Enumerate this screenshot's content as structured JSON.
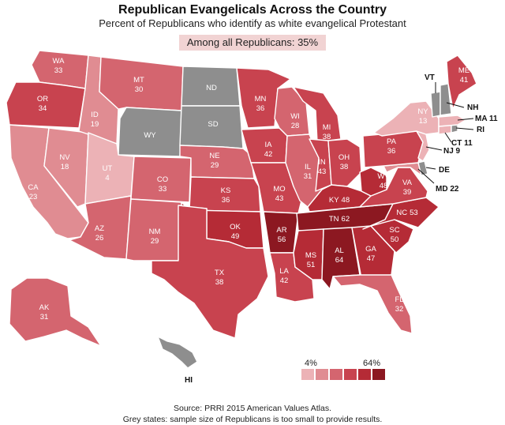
{
  "title": "Republican Evangelicals Across the Country",
  "subtitle": "Percent of Republicans who identify as white evangelical Protestant",
  "summary": "Among all Republicans: 35%",
  "legend": {
    "min": "4%",
    "max": "64%",
    "colors": [
      "#ecb2b6",
      "#e08c92",
      "#d4656f",
      "#c8434f",
      "#b52b36",
      "#8c1821"
    ]
  },
  "no_data_color": "#8e8e8e",
  "states": {
    "WA": {
      "label": "WA",
      "value": "33"
    },
    "OR": {
      "label": "OR",
      "value": "34"
    },
    "CA": {
      "label": "CA",
      "value": "23"
    },
    "NV": {
      "label": "NV",
      "value": "18"
    },
    "ID": {
      "label": "ID",
      "value": "19"
    },
    "MT": {
      "label": "MT",
      "value": "30"
    },
    "WY": {
      "label": "WY",
      "value": ""
    },
    "UT": {
      "label": "UT",
      "value": "4"
    },
    "AZ": {
      "label": "AZ",
      "value": "26"
    },
    "CO": {
      "label": "CO",
      "value": "33"
    },
    "NM": {
      "label": "NM",
      "value": "29"
    },
    "ND": {
      "label": "ND",
      "value": ""
    },
    "SD": {
      "label": "SD",
      "value": ""
    },
    "NE": {
      "label": "NE",
      "value": "29"
    },
    "KS": {
      "label": "KS",
      "value": "36"
    },
    "OK": {
      "label": "OK",
      "value": "49"
    },
    "TX": {
      "label": "TX",
      "value": "38"
    },
    "MN": {
      "label": "MN",
      "value": "36"
    },
    "IA": {
      "label": "IA",
      "value": "42"
    },
    "MO": {
      "label": "MO",
      "value": "43"
    },
    "AR": {
      "label": "AR",
      "value": "56"
    },
    "LA": {
      "label": "LA",
      "value": "42"
    },
    "WI": {
      "label": "WI",
      "value": "28"
    },
    "IL": {
      "label": "IL",
      "value": "31"
    },
    "MI": {
      "label": "MI",
      "value": "38"
    },
    "IN": {
      "label": "IN",
      "value": "43"
    },
    "OH": {
      "label": "OH",
      "value": "38"
    },
    "KY": {
      "label": "KY",
      "value": "48"
    },
    "TN": {
      "label": "TN",
      "value": "62"
    },
    "MS": {
      "label": "MS",
      "value": "51"
    },
    "AL": {
      "label": "AL",
      "value": "64"
    },
    "GA": {
      "label": "GA",
      "value": "47"
    },
    "FL": {
      "label": "FL",
      "value": "32"
    },
    "SC": {
      "label": "SC",
      "value": "50"
    },
    "NC": {
      "label": "NC",
      "value": "53"
    },
    "VA": {
      "label": "VA",
      "value": "39"
    },
    "WV": {
      "label": "WV",
      "value": "48"
    },
    "PA": {
      "label": "PA",
      "value": "36"
    },
    "NY": {
      "label": "NY",
      "value": "13"
    },
    "ME": {
      "label": "ME",
      "value": "41"
    },
    "AK": {
      "label": "AK",
      "value": "31"
    },
    "HI": {
      "label": "HI",
      "value": ""
    },
    "VT": {
      "label": "VT",
      "value": ""
    },
    "NH": {
      "label": "NH",
      "value": ""
    },
    "MA": {
      "label": "MA 11",
      "value": "11"
    },
    "RI": {
      "label": "RI",
      "value": ""
    },
    "CT": {
      "label": "CT 11",
      "value": "11"
    },
    "NJ": {
      "label": "NJ 9",
      "value": "9"
    },
    "DE": {
      "label": "DE",
      "value": ""
    },
    "MD": {
      "label": "MD 22",
      "value": "22"
    }
  },
  "source_line": "Source: PRRI 2015 American Values Atlas.",
  "note_line": "Grey states: sample size of Republicans is too small to provide results."
}
